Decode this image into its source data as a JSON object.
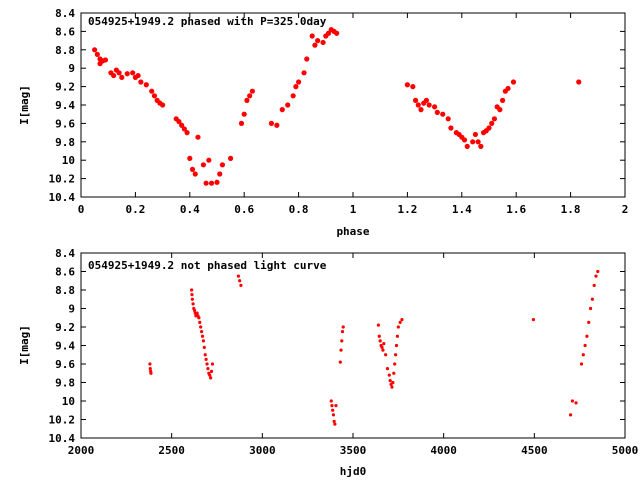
{
  "chart_data": [
    {
      "type": "scatter",
      "title": "054925+1949.2 phased with P=325.0day",
      "xlabel": "phase",
      "ylabel": "I[mag]",
      "xlim": [
        0,
        2
      ],
      "ylim": [
        10.4,
        8.4
      ],
      "y_inverted": true,
      "grid": false,
      "marker_color": "#ff0000",
      "xticks": [
        "0",
        "0.2",
        "0.4",
        "0.6",
        "0.8",
        "1",
        "1.2",
        "1.4",
        "1.6",
        "1.8",
        "2"
      ],
      "yticks": [
        "8.4",
        "8.6",
        "8.8",
        "9",
        "9.2",
        "9.4",
        "9.6",
        "9.8",
        "10",
        "10.2",
        "10.4"
      ],
      "series": [
        {
          "x": [
            0.05,
            0.06,
            0.07,
            0.07,
            0.08,
            0.09,
            0.11,
            0.12,
            0.13,
            0.14,
            0.15,
            0.17,
            0.19,
            0.2,
            0.21,
            0.22,
            0.24,
            0.26,
            0.27,
            0.28,
            0.29,
            0.3,
            0.35,
            0.36,
            0.37,
            0.38,
            0.39,
            0.4,
            0.41,
            0.42,
            0.43,
            0.45,
            0.46,
            0.47,
            0.48,
            0.5,
            0.51,
            0.52,
            0.55,
            0.59,
            0.6,
            0.61,
            0.62,
            0.63,
            0.7,
            0.72,
            0.74,
            0.76,
            0.78,
            0.79,
            0.8,
            0.82,
            0.83,
            0.85,
            0.86,
            0.87,
            0.89,
            0.9,
            0.91,
            0.92,
            0.93,
            0.94,
            1.2,
            1.22,
            1.23,
            1.24,
            1.25,
            1.26,
            1.27,
            1.28,
            1.3,
            1.31,
            1.33,
            1.35,
            1.36,
            1.38,
            1.39,
            1.4,
            1.41,
            1.42,
            1.44,
            1.45,
            1.46,
            1.47,
            1.48,
            1.49,
            1.5,
            1.51,
            1.52,
            1.53,
            1.54,
            1.55,
            1.56,
            1.57,
            1.59,
            1.83
          ],
          "y": [
            8.8,
            8.85,
            8.9,
            8.95,
            8.92,
            8.91,
            9.05,
            9.08,
            9.02,
            9.05,
            9.1,
            9.06,
            9.05,
            9.1,
            9.08,
            9.15,
            9.18,
            9.25,
            9.3,
            9.35,
            9.38,
            9.4,
            9.55,
            9.58,
            9.62,
            9.66,
            9.7,
            9.98,
            10.1,
            10.15,
            9.75,
            10.05,
            10.25,
            10.0,
            10.25,
            10.24,
            10.15,
            10.05,
            9.98,
            9.6,
            9.5,
            9.35,
            9.3,
            9.25,
            9.6,
            9.62,
            9.45,
            9.4,
            9.3,
            9.2,
            9.15,
            9.05,
            8.9,
            8.65,
            8.75,
            8.7,
            8.72,
            8.65,
            8.62,
            8.58,
            8.6,
            8.62,
            9.18,
            9.2,
            9.35,
            9.4,
            9.45,
            9.38,
            9.35,
            9.4,
            9.42,
            9.48,
            9.5,
            9.55,
            9.65,
            9.7,
            9.72,
            9.75,
            9.78,
            9.85,
            9.8,
            9.72,
            9.8,
            9.85,
            9.7,
            9.68,
            9.65,
            9.6,
            9.55,
            9.42,
            9.45,
            9.35,
            9.25,
            9.22,
            9.15,
            9.15
          ]
        }
      ]
    },
    {
      "type": "scatter",
      "title": "054925+1949.2 not phased light curve",
      "xlabel": "hjd0",
      "ylabel": "I[mag]",
      "xlim": [
        2000,
        5000
      ],
      "ylim": [
        10.4,
        8.4
      ],
      "y_inverted": true,
      "grid": false,
      "marker_color": "#ff0000",
      "xticks": [
        "2000",
        "2500",
        "3000",
        "3500",
        "4000",
        "4500",
        "5000"
      ],
      "yticks": [
        "8.4",
        "8.6",
        "8.8",
        "9",
        "9.2",
        "9.4",
        "9.6",
        "9.8",
        "10",
        "10.2",
        "10.4"
      ],
      "series": [
        {
          "x": [
            2380,
            2382,
            2384,
            2386,
            2610,
            2612,
            2614,
            2618,
            2622,
            2626,
            2630,
            2634,
            2640,
            2645,
            2650,
            2655,
            2660,
            2665,
            2670,
            2675,
            2680,
            2685,
            2690,
            2695,
            2700,
            2705,
            2710,
            2715,
            2720,
            2725,
            2868,
            2875,
            2882,
            3380,
            3384,
            3388,
            3392,
            3396,
            3400,
            3406,
            3430,
            3434,
            3438,
            3442,
            3446,
            3640,
            3645,
            3650,
            3655,
            3660,
            3665,
            3670,
            3680,
            3690,
            3700,
            3705,
            3710,
            3715,
            3720,
            3725,
            3730,
            3735,
            3740,
            3745,
            3750,
            3760,
            3770,
            4495,
            4700,
            4710,
            4730,
            4760,
            4770,
            4780,
            4790,
            4800,
            4810,
            4820,
            4830,
            4840,
            4850
          ],
          "y": [
            9.6,
            9.65,
            9.68,
            9.7,
            8.8,
            8.85,
            8.9,
            8.95,
            9.0,
            9.02,
            9.05,
            9.08,
            9.05,
            9.08,
            9.1,
            9.15,
            9.2,
            9.25,
            9.3,
            9.35,
            9.42,
            9.5,
            9.55,
            9.6,
            9.65,
            9.7,
            9.72,
            9.75,
            9.68,
            9.6,
            8.65,
            8.7,
            8.75,
            10.0,
            10.05,
            10.1,
            10.15,
            10.22,
            10.25,
            10.05,
            9.58,
            9.45,
            9.35,
            9.25,
            9.2,
            9.18,
            9.3,
            9.35,
            9.4,
            9.42,
            9.45,
            9.38,
            9.5,
            9.65,
            9.72,
            9.78,
            9.82,
            9.85,
            9.8,
            9.7,
            9.6,
            9.5,
            9.4,
            9.3,
            9.2,
            9.15,
            9.12,
            9.12,
            10.15,
            10.0,
            10.02,
            9.6,
            9.5,
            9.4,
            9.3,
            9.15,
            9.0,
            8.9,
            8.75,
            8.65,
            8.6
          ]
        }
      ]
    }
  ]
}
